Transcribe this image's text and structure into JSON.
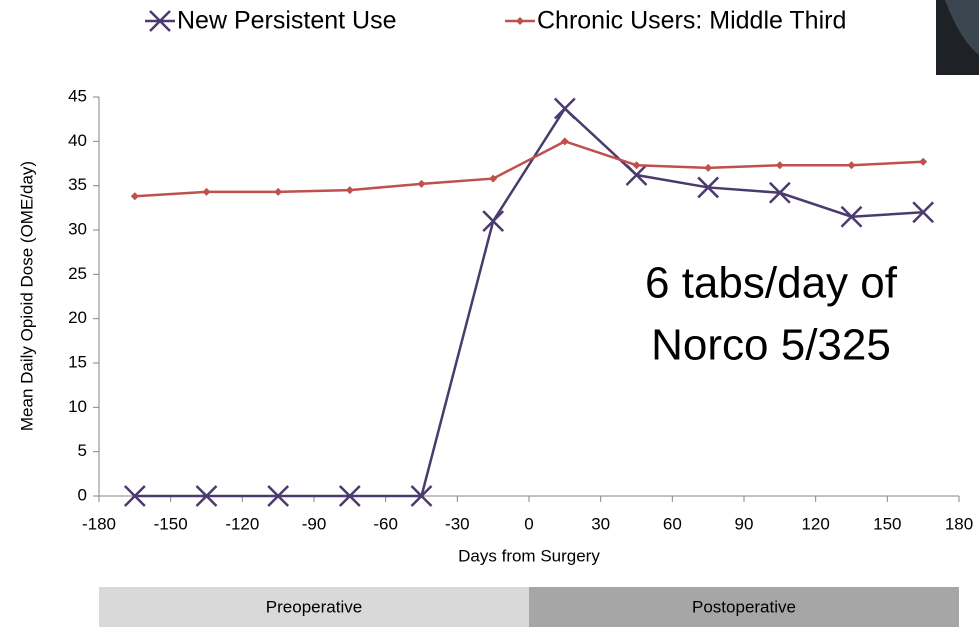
{
  "chart_data": {
    "type": "line",
    "x_label": "Days from Surgery",
    "y_label": "Mean Daily Opioid Dose (OME/day)",
    "x": [
      -165,
      -135,
      -105,
      -75,
      -45,
      -15,
      15,
      45,
      75,
      105,
      135,
      165
    ],
    "series": [
      {
        "name": "New Persistent Use",
        "color": "#4b3a6e",
        "marker": "x",
        "values": [
          0,
          0,
          0,
          0,
          0,
          31,
          43.7,
          36.2,
          34.8,
          34.2,
          31.5,
          32
        ]
      },
      {
        "name": "Chronic Users: Middle Third",
        "color": "#c0504d",
        "marker": "diamond",
        "values": [
          33.8,
          34.3,
          34.3,
          34.5,
          35.2,
          35.8,
          40,
          37.3,
          37,
          37.3,
          37.3,
          37.7
        ]
      }
    ],
    "xlim": [
      -180,
      180
    ],
    "xticks": [
      -180,
      -150,
      -120,
      -90,
      -60,
      -30,
      0,
      30,
      60,
      90,
      120,
      150,
      180
    ],
    "ylim": [
      0,
      45
    ],
    "yticks": [
      0,
      5,
      10,
      15,
      20,
      25,
      30,
      35,
      40,
      45
    ],
    "grid": false,
    "legend": "top",
    "annotation": [
      "6 tabs/day of",
      "Norco 5/325"
    ],
    "bands": [
      {
        "label": "Preoperative",
        "range": [
          -180,
          0
        ],
        "color": "#d9d9d9"
      },
      {
        "label": "Postoperative",
        "range": [
          0,
          180
        ],
        "color": "#a6a6a6"
      }
    ]
  }
}
